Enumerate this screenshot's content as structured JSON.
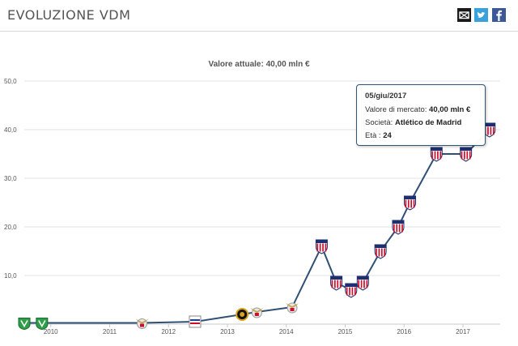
{
  "header": {
    "title": "EVOLUZIONE VDM",
    "share_icons": [
      "mail-icon",
      "twitter-icon",
      "facebook-icon"
    ]
  },
  "colors": {
    "line": "#2f4f75",
    "grid": "#e3e3e3",
    "mail": "#1a1a1a",
    "twitter": "#3ba1dc",
    "facebook": "#3b5998"
  },
  "tooltip": {
    "date": "05/giu/2017",
    "value_label": "Valore di mercato:",
    "value": "40,00 mln €",
    "club_label": "Società:",
    "club": "Atlético de Madrid",
    "age_label": "Età :",
    "age": "24"
  },
  "chart_data": {
    "type": "line",
    "title": "Valore attuale: 40,00 mln €",
    "ylim": [
      0,
      50
    ],
    "yticks": [
      "50,0",
      "40,0",
      "30,0",
      "20,0",
      "10,0"
    ],
    "xticks": [
      "2010",
      "2011",
      "2012",
      "2013",
      "2014",
      "2015",
      "2016",
      "2017"
    ],
    "grid": true,
    "points": [
      {
        "x": 2009.55,
        "y": 0.25,
        "club": "Rio Ave"
      },
      {
        "x": 2009.85,
        "y": 0.25,
        "club": "Rio Ave"
      },
      {
        "x": 2011.55,
        "y": 0.25,
        "club": "Benfica"
      },
      {
        "x": 2012.45,
        "y": 0.5,
        "club": "Real Zaragoza"
      },
      {
        "x": 2013.25,
        "y": 2.0,
        "club": "Académico Viseu"
      },
      {
        "x": 2013.5,
        "y": 2.5,
        "club": "Benfica"
      },
      {
        "x": 2014.1,
        "y": 3.5,
        "club": "Benfica"
      },
      {
        "x": 2014.6,
        "y": 16.0,
        "club": "Atlético de Madrid"
      },
      {
        "x": 2014.85,
        "y": 8.5,
        "club": "Atlético de Madrid"
      },
      {
        "x": 2015.1,
        "y": 7.0,
        "club": "Atlético de Madrid"
      },
      {
        "x": 2015.3,
        "y": 8.5,
        "club": "Atlético de Madrid"
      },
      {
        "x": 2015.6,
        "y": 15.0,
        "club": "Atlético de Madrid"
      },
      {
        "x": 2015.9,
        "y": 20.0,
        "club": "Atlético de Madrid"
      },
      {
        "x": 2016.1,
        "y": 25.0,
        "club": "Atlético de Madrid"
      },
      {
        "x": 2016.55,
        "y": 35.0,
        "club": "Atlético de Madrid"
      },
      {
        "x": 2017.05,
        "y": 35.0,
        "club": "Atlético de Madrid"
      },
      {
        "x": 2017.45,
        "y": 40.0,
        "club": "Atlético de Madrid"
      }
    ]
  }
}
